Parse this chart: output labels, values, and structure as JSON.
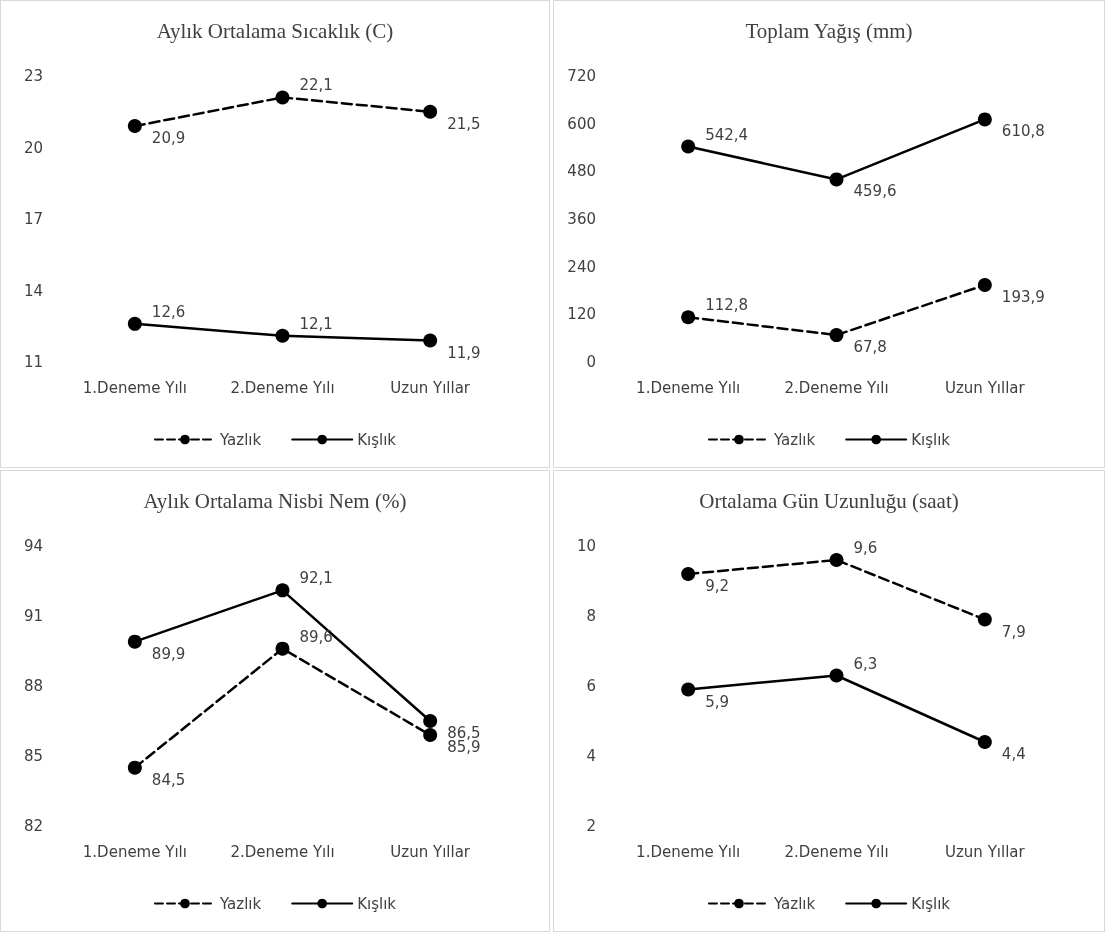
{
  "chart_data": [
    {
      "type": "line",
      "title": "Aylık Ortalama Sıcaklık (C)",
      "categories": [
        "1.Deneme Yılı",
        "2.Deneme Yılı",
        "Uzun Yıllar"
      ],
      "series": [
        {
          "name": "Yazlık",
          "color": "#000000",
          "values": [
            20.9,
            22.1,
            21.5
          ],
          "value_labels": [
            "20,9",
            "22,1",
            "21,5"
          ],
          "line_style": "dashed"
        },
        {
          "name": "Kışlık",
          "color": "#000000",
          "values": [
            12.6,
            12.1,
            11.9
          ],
          "value_labels": [
            "12,6",
            "12,1",
            "11,9"
          ],
          "line_style": "solid"
        }
      ],
      "ylim": [
        11,
        23
      ],
      "yticks": [
        11,
        14,
        17,
        20,
        23
      ],
      "grid": false,
      "legend": "bottom",
      "marker": "circle"
    },
    {
      "type": "line",
      "title": "Toplam Yağış (mm)",
      "categories": [
        "1.Deneme Yılı",
        "2.Deneme Yılı",
        "Uzun Yıllar"
      ],
      "series": [
        {
          "name": "Yazlık",
          "color": "#000000",
          "values": [
            112.8,
            67.8,
            193.9
          ],
          "value_labels": [
            "112,8",
            "67,8",
            "193,9"
          ],
          "line_style": "dashed"
        },
        {
          "name": "Kışlık",
          "color": "#000000",
          "values": [
            542.4,
            459.6,
            610.8
          ],
          "value_labels": [
            "542,4",
            "459,6",
            "610,8"
          ],
          "line_style": "solid"
        }
      ],
      "ylim": [
        0,
        720
      ],
      "yticks": [
        0,
        120,
        240,
        360,
        480,
        600,
        720
      ],
      "grid": false,
      "legend": "bottom",
      "marker": "circle"
    },
    {
      "type": "line",
      "title": "Aylık Ortalama Nisbi Nem (%)",
      "categories": [
        "1.Deneme Yılı",
        "2.Deneme Yılı",
        "Uzun Yıllar"
      ],
      "series": [
        {
          "name": "Yazlık",
          "color": "#000000",
          "values": [
            84.5,
            89.6,
            85.9
          ],
          "value_labels": [
            "84,5",
            "89,6",
            "85,9"
          ],
          "line_style": "dashed"
        },
        {
          "name": "Kışlık",
          "color": "#000000",
          "values": [
            89.9,
            92.1,
            86.5
          ],
          "value_labels": [
            "89,9",
            "92,1",
            "86,5"
          ],
          "line_style": "solid"
        }
      ],
      "ylim": [
        82,
        94
      ],
      "yticks": [
        82,
        85,
        88,
        91,
        94
      ],
      "grid": false,
      "legend": "bottom",
      "marker": "circle"
    },
    {
      "type": "line",
      "title": "Ortalama Gün Uzunluğu (saat)",
      "categories": [
        "1.Deneme Yılı",
        "2.Deneme Yılı",
        "Uzun Yıllar"
      ],
      "series": [
        {
          "name": "Yazlık",
          "color": "#000000",
          "values": [
            9.2,
            9.6,
            7.9
          ],
          "value_labels": [
            "9,2",
            "9,6",
            "7,9"
          ],
          "line_style": "dashed"
        },
        {
          "name": "Kışlık",
          "color": "#000000",
          "values": [
            5.9,
            6.3,
            4.4
          ],
          "value_labels": [
            "5,9",
            "6,3",
            "4,4"
          ],
          "line_style": "solid"
        }
      ],
      "ylim": [
        2,
        10
      ],
      "yticks": [
        2,
        4,
        6,
        8,
        10
      ],
      "grid": false,
      "legend": "bottom",
      "marker": "circle"
    }
  ]
}
